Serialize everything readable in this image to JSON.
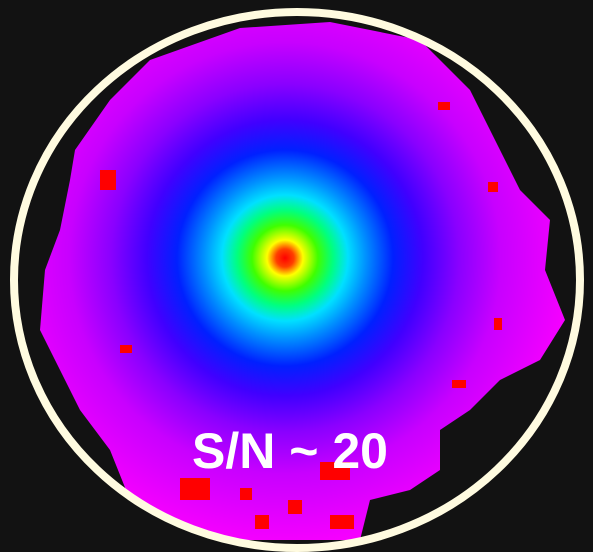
{
  "image": {
    "label": "S/N ~ 20"
  }
}
